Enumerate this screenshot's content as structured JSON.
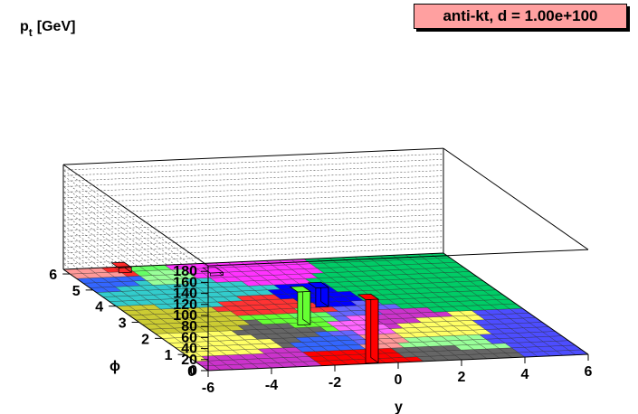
{
  "title": "anti-kt, d = 1.00e+100",
  "chart_data": {
    "type": "lego3d",
    "title": "anti-kt, d = 1.00e+100",
    "zlabel_main": "p",
    "zlabel_sub": "t",
    "zlabel_unit": "[GeV]",
    "xlabel": "y",
    "ylabel": "ϕ",
    "xlim": [
      -6,
      6
    ],
    "ylim": [
      0,
      6.283
    ],
    "zlim": [
      0,
      190
    ],
    "x_ticks": [
      "-6",
      "-4",
      "-2",
      "0",
      "2",
      "4",
      "6"
    ],
    "y_ticks": [
      "0",
      "1",
      "2",
      "3",
      "4",
      "5",
      "6"
    ],
    "z_ticks": [
      "0",
      "20",
      "40",
      "60",
      "80",
      "100",
      "120",
      "140",
      "160",
      "180"
    ],
    "grid": true,
    "towers": [
      {
        "y": -0.8,
        "phi": 0.2,
        "pt": 115,
        "color": "#ff0000"
      },
      {
        "y": -1.2,
        "phi": 2.6,
        "pt": 60,
        "color": "#66ff33"
      },
      {
        "y": 0.1,
        "phi": 3.6,
        "pt": 35,
        "color": "#0000ff"
      },
      {
        "y": -4.3,
        "phi": 6.1,
        "pt": 9,
        "color": "#ff2a2a"
      },
      {
        "y": -1.7,
        "phi": 5.7,
        "pt": 5,
        "color": "#ff33ff"
      }
    ],
    "jet_colors": [
      "#ff3333",
      "#ffff66",
      "#66ff66",
      "#3366ff",
      "#ff66ff",
      "#33cccc",
      "#666666",
      "#ff9999",
      "#99ff99",
      "#6666ff",
      "#cc33cc",
      "#00cc66",
      "#cccc33",
      "#4d4dff"
    ]
  }
}
